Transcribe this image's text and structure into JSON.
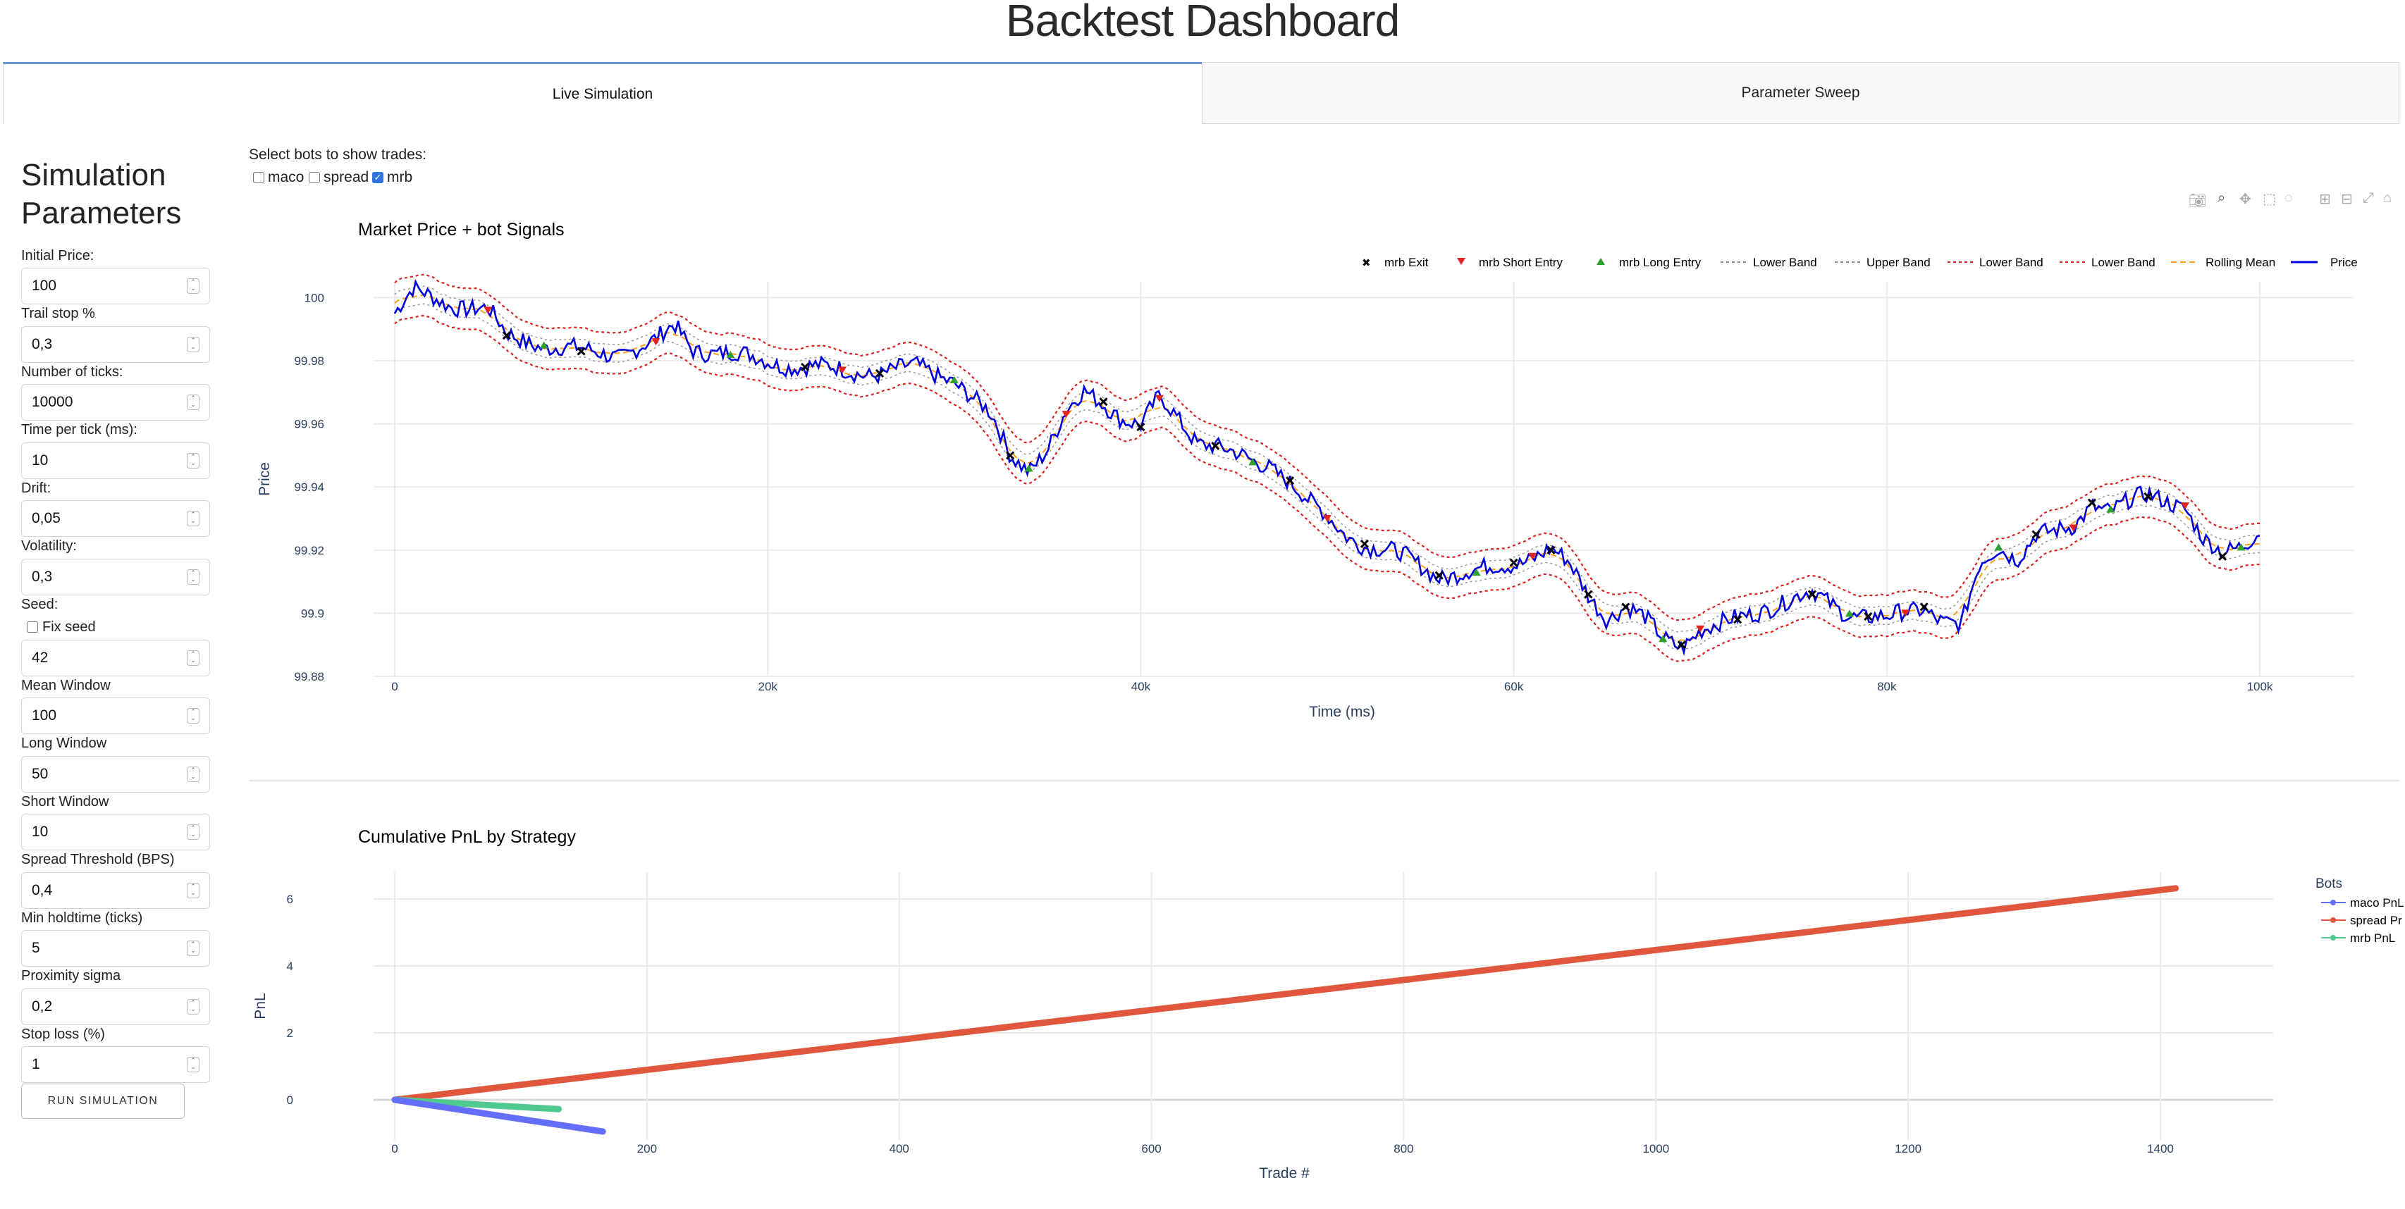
{
  "header": {
    "title": "Backtest Dashboard"
  },
  "tabs": [
    {
      "label": "Live Simulation",
      "active": true
    },
    {
      "label": "Parameter Sweep",
      "active": false
    }
  ],
  "sidebar": {
    "title_line1": "Simulation",
    "title_line2": "Parameters",
    "fields": [
      {
        "label": "Initial Price:",
        "value": "100"
      },
      {
        "label": "Trail stop %",
        "value": "0,3"
      },
      {
        "label": "Number of ticks:",
        "value": "10000"
      },
      {
        "label": "Time per tick (ms):",
        "value": "10"
      },
      {
        "label": "Drift:",
        "value": "0,05"
      },
      {
        "label": "Volatility:",
        "value": "0,3"
      },
      {
        "label": "Seed:",
        "value": ""
      },
      {
        "label": "Mean Window",
        "value": "100"
      },
      {
        "label": "Long Window",
        "value": "50"
      },
      {
        "label": "Short Window",
        "value": "10"
      },
      {
        "label": "Spread Threshold (BPS)",
        "value": "0,4"
      },
      {
        "label": "Min holdtime (ticks)",
        "value": "5"
      },
      {
        "label": "Proximity sigma",
        "value": "0,2"
      },
      {
        "label": "Stop loss (%)",
        "value": "1"
      }
    ],
    "seed_checkbox": {
      "label": "Fix seed",
      "checked": false
    },
    "seed_value": "42",
    "run_button": "RUN SIMULATION"
  },
  "bot_selector": {
    "label": "Select bots to show trades:",
    "options": [
      {
        "label": "maco",
        "checked": false
      },
      {
        "label": "spread",
        "checked": false
      },
      {
        "label": "mrb",
        "checked": true
      }
    ]
  },
  "toolbar_icons": [
    "camera-icon",
    "zoom-icon",
    "pan-icon",
    "box-select-icon",
    "lasso-icon",
    "zoom-in-icon",
    "zoom-out-icon",
    "autoscale-icon",
    "home-icon"
  ],
  "colors": {
    "price": "#0000dd",
    "band": "#dd2222",
    "rolling_mean": "#ff9f1c",
    "exit": "#000000",
    "short_entry": "#e52222",
    "long_entry": "#2ca02c",
    "maco": "#636efa",
    "spread": "#e0573e",
    "mrb": "#4fc98f",
    "tab_accent": "#6b93cc"
  },
  "chart_data": [
    {
      "type": "line",
      "title": "Market Price + bot Signals",
      "xlabel": "Time (ms)",
      "ylabel": "Price",
      "xlim": [
        0,
        100000
      ],
      "ylim": [
        99.88,
        100.005
      ],
      "x_ticks": [
        0,
        20000,
        40000,
        60000,
        80000,
        100000
      ],
      "x_tick_labels": [
        "0",
        "20k",
        "40k",
        "60k",
        "80k",
        "100k"
      ],
      "y_ticks": [
        99.88,
        99.9,
        99.92,
        99.94,
        99.96,
        99.98,
        100
      ],
      "y_tick_labels": [
        "99.88",
        "99.9",
        "99.92",
        "99.94",
        "99.96",
        "99.98",
        "100"
      ],
      "legend": [
        "mrb Exit",
        "mrb Short Entry",
        "mrb Long Entry",
        "Lower Band",
        "Upper Band",
        "Lower Band",
        "Lower Band",
        "Rolling Mean",
        "Price"
      ],
      "legend_position": "top-right",
      "grid": true,
      "series": [
        {
          "name": "Price",
          "x": [
            0,
            1000,
            3000,
            5000,
            6000,
            8000,
            10000,
            12000,
            14000,
            15000,
            16000,
            18000,
            20000,
            22000,
            24000,
            26000,
            28000,
            30000,
            31000,
            32000,
            33000,
            34000,
            35000,
            36000,
            37000,
            38000,
            39000,
            40000,
            41000,
            42000,
            43000,
            44000,
            45000,
            46000,
            47000,
            48000,
            49000,
            50000,
            51000,
            52000,
            54000,
            56000,
            58000,
            60000,
            62000,
            63000,
            64000,
            65000,
            66000,
            67000,
            68000,
            69000,
            70000,
            71000,
            72000,
            74000,
            76000,
            78000,
            80000,
            82000,
            83000,
            84000,
            85000,
            86000,
            87000,
            88000,
            89000,
            90000,
            91000,
            92000,
            93000,
            94000,
            95000,
            96000,
            97000,
            98000,
            99000,
            100000
          ],
          "values": [
            99.995,
            100.002,
            99.998,
            99.996,
            99.988,
            99.985,
            99.983,
            99.982,
            99.986,
            99.991,
            99.984,
            99.982,
            99.98,
            99.978,
            99.977,
            99.976,
            99.978,
            99.974,
            99.968,
            99.962,
            99.95,
            99.946,
            99.952,
            99.963,
            99.97,
            99.967,
            99.962,
            99.959,
            99.968,
            99.962,
            99.955,
            99.953,
            99.95,
            99.948,
            99.947,
            99.942,
            99.935,
            99.93,
            99.925,
            99.922,
            99.918,
            99.912,
            99.913,
            99.916,
            99.92,
            99.915,
            99.906,
            99.899,
            99.902,
            99.898,
            99.892,
            99.89,
            99.895,
            99.896,
            99.898,
            99.903,
            99.906,
            99.9,
            99.898,
            99.902,
            99.898,
            99.896,
            99.915,
            99.921,
            99.918,
            99.925,
            99.925,
            99.927,
            99.935,
            99.933,
            99.935,
            99.937,
            99.936,
            99.934,
            99.923,
            99.918,
            99.921,
            99.927
          ]
        }
      ],
      "mrb_exits_x": [
        6000,
        10000,
        22000,
        26000,
        33000,
        38000,
        40000,
        44000,
        48000,
        52000,
        56000,
        60000,
        62000,
        64000,
        66000,
        69000,
        72000,
        76000,
        79000,
        82000,
        88000,
        91000,
        94000,
        98000
      ],
      "mrb_short_entries_x": [
        5000,
        14000,
        24000,
        36000,
        41000,
        50000,
        61000,
        70000,
        81000,
        90000,
        96000
      ],
      "mrb_long_entries_x": [
        8000,
        18000,
        30000,
        34000,
        46000,
        58000,
        68000,
        78000,
        86000,
        92000,
        99000
      ]
    },
    {
      "type": "line",
      "title": "Cumulative PnL by Strategy",
      "xlabel": "Trade #",
      "ylabel": "PnL",
      "xlim": [
        -60,
        1490
      ],
      "ylim": [
        -1.2,
        6.8
      ],
      "x_ticks": [
        0,
        200,
        400,
        600,
        800,
        1000,
        1200,
        1400
      ],
      "x_tick_labels": [
        "0",
        "200",
        "400",
        "600",
        "800",
        "1000",
        "1200",
        "1400"
      ],
      "y_ticks": [
        0,
        2,
        4,
        6
      ],
      "y_tick_labels": [
        "0",
        "2",
        "4",
        "6"
      ],
      "legend_title": "Bots",
      "legend": [
        "maco PnL",
        "spread Pr",
        "mrb PnL"
      ],
      "legend_position": "right",
      "grid": true,
      "series": [
        {
          "name": "maco PnL",
          "x": [
            0,
            165
          ],
          "values": [
            0,
            -0.95
          ]
        },
        {
          "name": "spread PnL",
          "x": [
            0,
            1412
          ],
          "values": [
            0,
            6.32
          ]
        },
        {
          "name": "mrb PnL",
          "x": [
            0,
            130
          ],
          "values": [
            0,
            -0.28
          ]
        }
      ]
    }
  ]
}
